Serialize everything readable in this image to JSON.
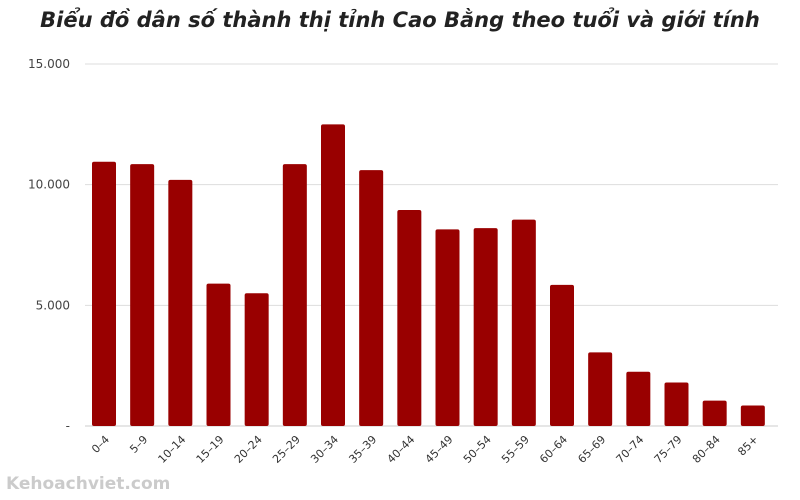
{
  "chart_data": {
    "type": "bar",
    "title": "Biểu đồ dân số thành thị tỉnh Cao Bằng theo tuổi và giới tính",
    "categories": [
      "0–4",
      "5–9",
      "10–14",
      "15–19",
      "20–24",
      "25–29",
      "30–34",
      "35–39",
      "40–44",
      "45–49",
      "50–54",
      "55–59",
      "60–64",
      "65–69",
      "70–74",
      "75–79",
      "80–84",
      "85+"
    ],
    "values": [
      10950,
      10850,
      10200,
      5900,
      5500,
      10850,
      12500,
      10600,
      8950,
      8150,
      8200,
      8550,
      5850,
      3050,
      2250,
      1800,
      1050,
      850
    ],
    "ylim": [
      0,
      15000
    ],
    "yticks": [
      {
        "value": 0,
        "label": "-"
      },
      {
        "value": 5000,
        "label": "5.000"
      },
      {
        "value": 10000,
        "label": "10.000"
      },
      {
        "value": 15000,
        "label": "15.000"
      }
    ],
    "grid": true,
    "xlabel": "",
    "ylabel": "",
    "bar_color": "#990000",
    "grid_color": "#dddddd"
  },
  "watermark": "Kehoachviet.com"
}
